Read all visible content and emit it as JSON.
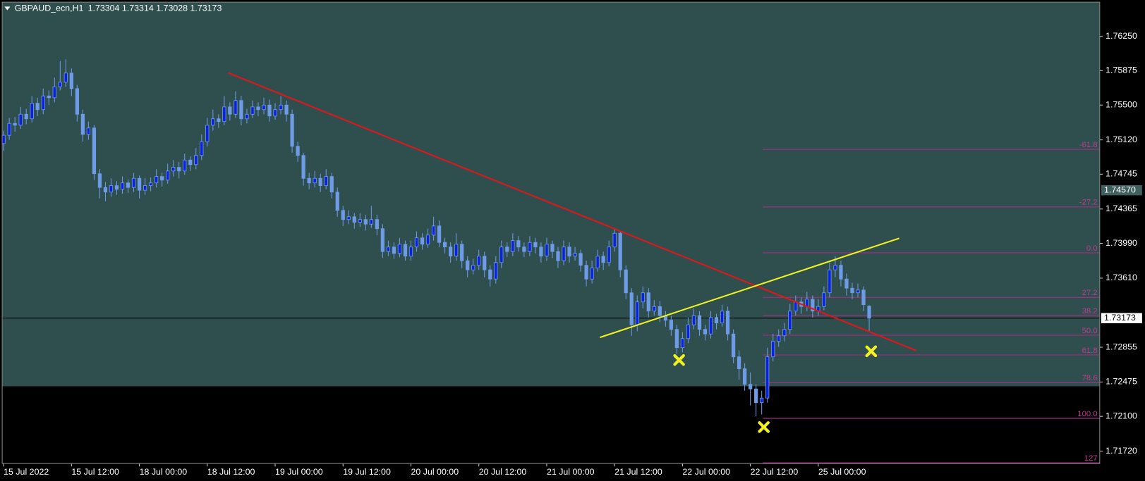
{
  "chart_data": {
    "type": "candlestick",
    "title": "GBPAUD_ecn,H1",
    "quote": "1.73304 1.73314 1.73028 1.73173",
    "xlim": [
      -0.25,
      193.75
    ],
    "ylim": [
      1.71585,
      1.76624
    ],
    "xticks": [
      {
        "value": 0,
        "label": "15 Jul 2022"
      },
      {
        "value": 12,
        "label": "15 Jul 12:00"
      },
      {
        "value": 24,
        "label": "18 Jul 00:00"
      },
      {
        "value": 36,
        "label": "18 Jul 12:00"
      },
      {
        "value": 48,
        "label": "19 Jul 00:00"
      },
      {
        "value": 60,
        "label": "19 Jul 12:00"
      },
      {
        "value": 72,
        "label": "20 Jul 00:00"
      },
      {
        "value": 84,
        "label": "20 Jul 12:00"
      },
      {
        "value": 96,
        "label": "21 Jul 00:00"
      },
      {
        "value": 108,
        "label": "21 Jul 12:00"
      },
      {
        "value": 120,
        "label": "22 Jul 00:00"
      },
      {
        "value": 132,
        "label": "22 Jul 12:00"
      },
      {
        "value": 144,
        "label": "25 Jul 00:00"
      }
    ],
    "yticks": [
      {
        "value": 1.7625,
        "label": "1.76250"
      },
      1.75875,
      {
        "value": 1.755,
        "label": "1.75500"
      },
      {
        "value": 1.7512,
        "label": "1.75120"
      },
      1.74745,
      1.74365,
      {
        "value": 1.7399,
        "label": "1.73990"
      },
      {
        "value": 1.7361,
        "label": "1.73610"
      },
      1.72855,
      1.72475,
      {
        "value": 1.721,
        "label": "1.72100"
      },
      {
        "value": 1.7172,
        "label": "1.71720"
      }
    ],
    "up_color": "#0a22dd",
    "down_color": "#6e9be6",
    "wick_color": "#6e9be6",
    "zone": {
      "color": "#2f4f4f",
      "price_low": 1.72429
    },
    "bid": 1.73173,
    "marker_price": {
      "value": 1.7457,
      "label": "1.74570"
    },
    "trendlines": [
      {
        "color": "#e0161a",
        "x": [
          39.7,
          161.3
        ],
        "y": [
          1.75852,
          1.72819
        ]
      },
      {
        "color": "#f2f21e",
        "x": [
          105.4,
          158.3
        ],
        "y": [
          1.72962,
          1.74045
        ]
      }
    ],
    "fibo": {
      "color": "#b02a8e",
      "start": 134.2,
      "levels": [
        {
          "label": "-61.8",
          "price": 1.75016
        },
        {
          "label": "-27.2",
          "price": 1.74387
        },
        {
          "label": "0.0",
          "price": 1.73886
        },
        {
          "label": "27.2",
          "price": 1.734
        },
        {
          "label": "38.2",
          "price": 1.73201
        },
        {
          "label": "50.0",
          "price": 1.72986
        },
        {
          "label": "61.8",
          "price": 1.72771
        },
        {
          "label": "78.6",
          "price": 1.72468
        },
        {
          "label": "100.0",
          "price": 1.72078
        },
        {
          "label": "127",
          "price": 1.71593
        }
      ]
    },
    "candles": [
      [
        1.7508,
        1.7522,
        1.75,
        1.7517
      ],
      [
        1.7517,
        1.7536,
        1.7512,
        1.753
      ],
      [
        1.753,
        1.7537,
        1.7521,
        1.7528
      ],
      [
        1.7528,
        1.7548,
        1.7524,
        1.754
      ],
      [
        1.754,
        1.7546,
        1.7529,
        1.7535
      ],
      [
        1.7535,
        1.756,
        1.7531,
        1.7552
      ],
      [
        1.7552,
        1.7558,
        1.7538,
        1.7545
      ],
      [
        1.7545,
        1.7568,
        1.754,
        1.756
      ],
      [
        1.756,
        1.7566,
        1.755,
        1.7558
      ],
      [
        1.7558,
        1.758,
        1.7553,
        1.757
      ],
      [
        1.757,
        1.7598,
        1.7566,
        1.7575
      ],
      [
        1.7575,
        1.76,
        1.757,
        1.7585
      ],
      [
        1.7585,
        1.759,
        1.756,
        1.7568
      ],
      [
        1.7568,
        1.7572,
        1.7532,
        1.754
      ],
      [
        1.754,
        1.7545,
        1.751,
        1.7518
      ],
      [
        1.7518,
        1.7532,
        1.7512,
        1.7525
      ],
      [
        1.7525,
        1.7528,
        1.7468,
        1.7475
      ],
      [
        1.7475,
        1.748,
        1.7448,
        1.746
      ],
      [
        1.746,
        1.7466,
        1.7445,
        1.7455
      ],
      [
        1.7455,
        1.747,
        1.745,
        1.7462
      ],
      [
        1.7462,
        1.7467,
        1.7452,
        1.7458
      ],
      [
        1.7458,
        1.7472,
        1.7453,
        1.7465
      ],
      [
        1.7465,
        1.7469,
        1.7454,
        1.746
      ],
      [
        1.746,
        1.7476,
        1.7455,
        1.747
      ],
      [
        1.747,
        1.7473,
        1.7448,
        1.7457
      ],
      [
        1.7457,
        1.747,
        1.7452,
        1.7462
      ],
      [
        1.7462,
        1.7471,
        1.7456,
        1.7465
      ],
      [
        1.7465,
        1.748,
        1.746,
        1.7472
      ],
      [
        1.7472,
        1.7476,
        1.7461,
        1.7468
      ],
      [
        1.7468,
        1.7486,
        1.7464,
        1.7478
      ],
      [
        1.7478,
        1.749,
        1.7472,
        1.7482
      ],
      [
        1.7482,
        1.7488,
        1.747,
        1.7478
      ],
      [
        1.7478,
        1.7497,
        1.7474,
        1.749
      ],
      [
        1.749,
        1.7494,
        1.7478,
        1.7485
      ],
      [
        1.7485,
        1.7503,
        1.748,
        1.7495
      ],
      [
        1.7495,
        1.7518,
        1.749,
        1.751
      ],
      [
        1.751,
        1.7536,
        1.7505,
        1.7528
      ],
      [
        1.7528,
        1.7545,
        1.7522,
        1.7535
      ],
      [
        1.7535,
        1.754,
        1.7525,
        1.7532
      ],
      [
        1.7532,
        1.756,
        1.7528,
        1.7548
      ],
      [
        1.7548,
        1.7553,
        1.7533,
        1.754
      ],
      [
        1.754,
        1.7565,
        1.7536,
        1.7555
      ],
      [
        1.7555,
        1.756,
        1.7528,
        1.7535
      ],
      [
        1.7535,
        1.7546,
        1.753,
        1.754
      ],
      [
        1.754,
        1.7555,
        1.7536,
        1.7548
      ],
      [
        1.7548,
        1.7553,
        1.7538,
        1.7545
      ],
      [
        1.7545,
        1.7558,
        1.754,
        1.755
      ],
      [
        1.755,
        1.7556,
        1.7532,
        1.7538
      ],
      [
        1.7538,
        1.7552,
        1.7534,
        1.7545
      ],
      [
        1.7545,
        1.756,
        1.754,
        1.755
      ],
      [
        1.755,
        1.7555,
        1.7532,
        1.754
      ],
      [
        1.754,
        1.7545,
        1.7498,
        1.7505
      ],
      [
        1.7505,
        1.751,
        1.7488,
        1.7495
      ],
      [
        1.7495,
        1.7498,
        1.7462,
        1.747
      ],
      [
        1.747,
        1.7476,
        1.7458,
        1.7465
      ],
      [
        1.7465,
        1.7478,
        1.746,
        1.747
      ],
      [
        1.747,
        1.7475,
        1.7455,
        1.7462
      ],
      [
        1.7462,
        1.748,
        1.7458,
        1.7472
      ],
      [
        1.7472,
        1.7476,
        1.7448,
        1.7455
      ],
      [
        1.7455,
        1.746,
        1.7428,
        1.7435
      ],
      [
        1.7435,
        1.744,
        1.7418,
        1.7425
      ],
      [
        1.7425,
        1.7435,
        1.742,
        1.7428
      ],
      [
        1.7428,
        1.7432,
        1.7415,
        1.7422
      ],
      [
        1.7422,
        1.7432,
        1.7417,
        1.7425
      ],
      [
        1.7425,
        1.743,
        1.7413,
        1.742
      ],
      [
        1.742,
        1.744,
        1.7416,
        1.7425
      ],
      [
        1.7425,
        1.743,
        1.7408,
        1.7415
      ],
      [
        1.7415,
        1.742,
        1.7383,
        1.739
      ],
      [
        1.739,
        1.7402,
        1.7385,
        1.7395
      ],
      [
        1.7395,
        1.74,
        1.7382,
        1.7388
      ],
      [
        1.7388,
        1.7405,
        1.7384,
        1.7398
      ],
      [
        1.7398,
        1.7402,
        1.738,
        1.7385
      ],
      [
        1.7385,
        1.7402,
        1.738,
        1.7395
      ],
      [
        1.7395,
        1.7412,
        1.739,
        1.7405
      ],
      [
        1.7405,
        1.741,
        1.7392,
        1.7398
      ],
      [
        1.7398,
        1.7415,
        1.7394,
        1.7408
      ],
      [
        1.7408,
        1.7428,
        1.7402,
        1.7418
      ],
      [
        1.7418,
        1.7424,
        1.7395,
        1.74
      ],
      [
        1.74,
        1.7405,
        1.7388,
        1.7395
      ],
      [
        1.7395,
        1.74,
        1.7378,
        1.7385
      ],
      [
        1.7385,
        1.741,
        1.738,
        1.7398
      ],
      [
        1.7398,
        1.7402,
        1.7372,
        1.738
      ],
      [
        1.738,
        1.7385,
        1.7362,
        1.737
      ],
      [
        1.737,
        1.7382,
        1.7365,
        1.7375
      ],
      [
        1.7375,
        1.7392,
        1.737,
        1.7385
      ],
      [
        1.7385,
        1.739,
        1.7362,
        1.737
      ],
      [
        1.737,
        1.7375,
        1.7352,
        1.736
      ],
      [
        1.736,
        1.7385,
        1.7355,
        1.7378
      ],
      [
        1.7378,
        1.7402,
        1.7372,
        1.7395
      ],
      [
        1.7395,
        1.74,
        1.7384,
        1.739
      ],
      [
        1.739,
        1.741,
        1.7385,
        1.7402
      ],
      [
        1.7402,
        1.7407,
        1.739,
        1.7395
      ],
      [
        1.7395,
        1.74,
        1.7384,
        1.739
      ],
      [
        1.739,
        1.7407,
        1.7385,
        1.74
      ],
      [
        1.74,
        1.7405,
        1.7388,
        1.7395
      ],
      [
        1.7395,
        1.74,
        1.7378,
        1.7385
      ],
      [
        1.7385,
        1.7405,
        1.738,
        1.7398
      ],
      [
        1.7398,
        1.7402,
        1.7383,
        1.739
      ],
      [
        1.739,
        1.7395,
        1.7372,
        1.738
      ],
      [
        1.738,
        1.7402,
        1.7375,
        1.7395
      ],
      [
        1.7395,
        1.74,
        1.7378,
        1.7385
      ],
      [
        1.7385,
        1.7395,
        1.738,
        1.7388
      ],
      [
        1.7388,
        1.7392,
        1.7368,
        1.7375
      ],
      [
        1.7375,
        1.738,
        1.7352,
        1.736
      ],
      [
        1.736,
        1.738,
        1.7355,
        1.7372
      ],
      [
        1.7372,
        1.7392,
        1.7368,
        1.7385
      ],
      [
        1.7385,
        1.739,
        1.737,
        1.7378
      ],
      [
        1.7378,
        1.7402,
        1.7374,
        1.7395
      ],
      [
        1.7395,
        1.7415,
        1.739,
        1.741
      ],
      [
        1.741,
        1.7412,
        1.7362,
        1.737
      ],
      [
        1.737,
        1.7375,
        1.7338,
        1.7345
      ],
      [
        1.7345,
        1.735,
        1.7298,
        1.731
      ],
      [
        1.731,
        1.7342,
        1.7303,
        1.7335
      ],
      [
        1.7335,
        1.7352,
        1.7328,
        1.7345
      ],
      [
        1.7345,
        1.735,
        1.7318,
        1.7325
      ],
      [
        1.7325,
        1.7337,
        1.732,
        1.733
      ],
      [
        1.733,
        1.7336,
        1.7313,
        1.732
      ],
      [
        1.732,
        1.7325,
        1.7308,
        1.7315
      ],
      [
        1.7315,
        1.732,
        1.7298,
        1.7305
      ],
      [
        1.7305,
        1.731,
        1.7278,
        1.7285
      ],
      [
        1.7285,
        1.7302,
        1.728,
        1.7295
      ],
      [
        1.7295,
        1.7318,
        1.729,
        1.731
      ],
      [
        1.731,
        1.7328,
        1.7305,
        1.732
      ],
      [
        1.732,
        1.7325,
        1.7298,
        1.7305
      ],
      [
        1.7305,
        1.731,
        1.7293,
        1.73
      ],
      [
        1.73,
        1.7325,
        1.7295,
        1.7318
      ],
      [
        1.7318,
        1.7322,
        1.7305,
        1.7312
      ],
      [
        1.7312,
        1.7332,
        1.7308,
        1.7325
      ],
      [
        1.7325,
        1.733,
        1.7293,
        1.73
      ],
      [
        1.73,
        1.7305,
        1.7268,
        1.7275
      ],
      [
        1.7275,
        1.7282,
        1.725,
        1.7262
      ],
      [
        1.7262,
        1.7268,
        1.7238,
        1.7245
      ],
      [
        1.7245,
        1.7258,
        1.7222,
        1.724
      ],
      [
        1.724,
        1.7245,
        1.721,
        1.7225
      ],
      [
        1.7225,
        1.7238,
        1.7212,
        1.723
      ],
      [
        1.723,
        1.7285,
        1.7225,
        1.7275
      ],
      [
        1.7275,
        1.73,
        1.727,
        1.7292
      ],
      [
        1.7292,
        1.7305,
        1.7286,
        1.7298
      ],
      [
        1.7298,
        1.7312,
        1.7292,
        1.7305
      ],
      [
        1.7305,
        1.7333,
        1.73,
        1.7325
      ],
      [
        1.7325,
        1.7342,
        1.732,
        1.7335
      ],
      [
        1.7335,
        1.734,
        1.7322,
        1.733
      ],
      [
        1.733,
        1.7346,
        1.7325,
        1.7338
      ],
      [
        1.7338,
        1.7342,
        1.7318,
        1.7325
      ],
      [
        1.7325,
        1.7338,
        1.732,
        1.733
      ],
      [
        1.733,
        1.7352,
        1.7326,
        1.7345
      ],
      [
        1.7345,
        1.7378,
        1.734,
        1.737
      ],
      [
        1.737,
        1.7385,
        1.7362,
        1.7375
      ],
      [
        1.7375,
        1.738,
        1.7352,
        1.736
      ],
      [
        1.736,
        1.7366,
        1.7342,
        1.735
      ],
      [
        1.735,
        1.7356,
        1.7338,
        1.7345
      ],
      [
        1.7345,
        1.7355,
        1.734,
        1.7348
      ],
      [
        1.7348,
        1.7352,
        1.7325,
        1.7332
      ],
      [
        1.73304,
        1.73314,
        1.73028,
        1.73173
      ]
    ]
  }
}
